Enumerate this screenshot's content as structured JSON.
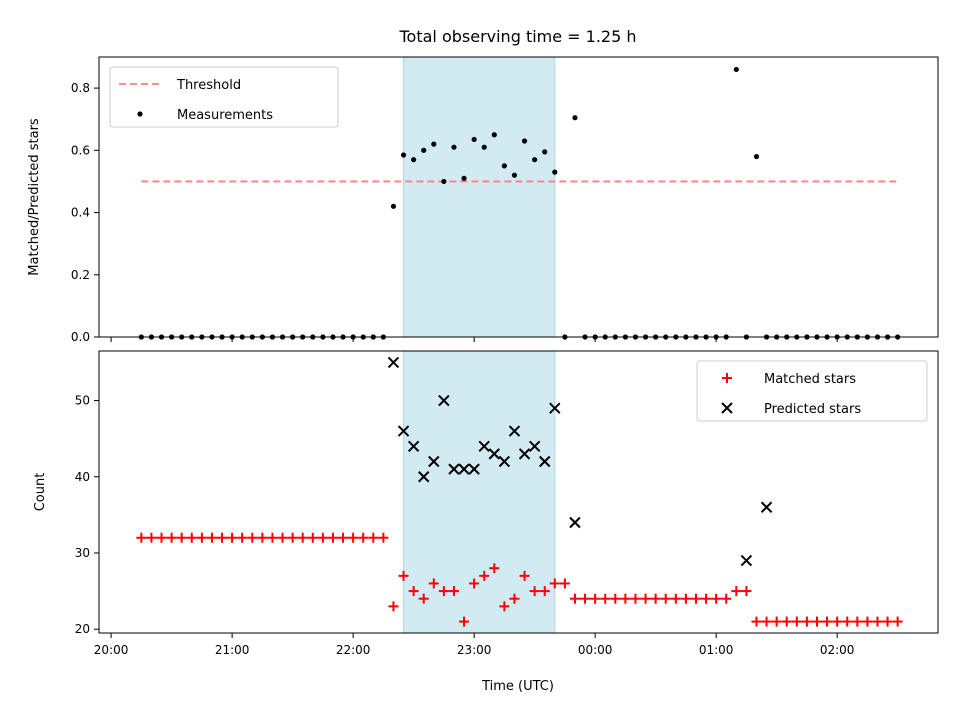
{
  "figure": {
    "title": "Total observing time = 1.25 h",
    "xlabel": "Time (UTC)",
    "xticks": [
      "20:00",
      "21:00",
      "22:00",
      "23:00",
      "00:00",
      "01:00",
      "02:00"
    ],
    "shade_color": "#add8e6",
    "xlim": [
      "19:54",
      "02:50"
    ],
    "shaded_interval": [
      "22:25",
      "23:40"
    ]
  },
  "chart_data": [
    {
      "type": "scatter",
      "ylabel": "Matched/Predicted stars",
      "ylim": [
        0,
        0.9
      ],
      "yticks": [
        0.0,
        0.2,
        0.4,
        0.6,
        0.8
      ],
      "legend_position": "top-left",
      "series": [
        {
          "name": "Threshold",
          "kind": "dashed-line",
          "color": "#ff7f7f",
          "x": [
            "20:15",
            "02:30"
          ],
          "y": [
            0.5,
            0.5
          ]
        },
        {
          "name": "Measurements",
          "kind": "points",
          "color": "#000000",
          "x": [
            "20:15",
            "20:20",
            "20:25",
            "20:30",
            "20:35",
            "20:40",
            "20:45",
            "20:50",
            "20:55",
            "21:00",
            "21:05",
            "21:10",
            "21:15",
            "21:20",
            "21:25",
            "21:30",
            "21:35",
            "21:40",
            "21:45",
            "21:50",
            "21:55",
            "22:00",
            "22:05",
            "22:10",
            "22:15",
            "22:20",
            "22:25",
            "22:30",
            "22:35",
            "22:40",
            "22:45",
            "22:50",
            "22:55",
            "23:00",
            "23:05",
            "23:10",
            "23:15",
            "23:20",
            "23:25",
            "23:30",
            "23:35",
            "23:40",
            "23:45",
            "23:50",
            "23:55",
            "00:00",
            "00:05",
            "00:10",
            "00:15",
            "00:20",
            "00:25",
            "00:30",
            "00:35",
            "00:40",
            "00:45",
            "00:50",
            "00:55",
            "01:00",
            "01:05",
            "01:10",
            "01:15",
            "01:20",
            "01:25",
            "01:30",
            "01:35",
            "01:40",
            "01:45",
            "01:50",
            "01:55",
            "02:00",
            "02:05",
            "02:10",
            "02:15",
            "02:20",
            "02:25",
            "02:30"
          ],
          "y": [
            0,
            0,
            0,
            0,
            0,
            0,
            0,
            0,
            0,
            0,
            0,
            0,
            0,
            0,
            0,
            0,
            0,
            0,
            0,
            0,
            0,
            0,
            0,
            0,
            0,
            0.42,
            0.585,
            0.57,
            0.6,
            0.62,
            0.5,
            0.61,
            0.51,
            0.635,
            0.61,
            0.65,
            0.55,
            0.52,
            0.63,
            0.57,
            0.595,
            0.53,
            0,
            0.705,
            0,
            0,
            0,
            0,
            0,
            0,
            0,
            0,
            0,
            0,
            0,
            0,
            0,
            0,
            0,
            0.86,
            0,
            0.58,
            0,
            0,
            0,
            0,
            0,
            0,
            0,
            0,
            0,
            0,
            0,
            0,
            0,
            0
          ]
        }
      ]
    },
    {
      "type": "scatter",
      "ylabel": "Count",
      "ylim": [
        19.5,
        56.5
      ],
      "yticks": [
        20,
        30,
        40,
        50
      ],
      "legend_position": "top-right",
      "series": [
        {
          "name": "Matched stars",
          "marker": "+",
          "color": "#ff0000",
          "x": [
            "20:15",
            "20:20",
            "20:25",
            "20:30",
            "20:35",
            "20:40",
            "20:45",
            "20:50",
            "20:55",
            "21:00",
            "21:05",
            "21:10",
            "21:15",
            "21:20",
            "21:25",
            "21:30",
            "21:35",
            "21:40",
            "21:45",
            "21:50",
            "21:55",
            "22:00",
            "22:05",
            "22:10",
            "22:15",
            "22:20",
            "22:25",
            "22:30",
            "22:35",
            "22:40",
            "22:45",
            "22:50",
            "22:55",
            "23:00",
            "23:05",
            "23:10",
            "23:15",
            "23:20",
            "23:25",
            "23:30",
            "23:35",
            "23:40",
            "23:45",
            "23:50",
            "23:55",
            "00:00",
            "00:05",
            "00:10",
            "00:15",
            "00:20",
            "00:25",
            "00:30",
            "00:35",
            "00:40",
            "00:45",
            "00:50",
            "00:55",
            "01:00",
            "01:05",
            "01:10",
            "01:15",
            "01:20",
            "01:25",
            "01:30",
            "01:35",
            "01:40",
            "01:45",
            "01:50",
            "01:55",
            "02:00",
            "02:05",
            "02:10",
            "02:15",
            "02:20",
            "02:25",
            "02:30"
          ],
          "y": [
            32,
            32,
            32,
            32,
            32,
            32,
            32,
            32,
            32,
            32,
            32,
            32,
            32,
            32,
            32,
            32,
            32,
            32,
            32,
            32,
            32,
            32,
            32,
            32,
            32,
            23,
            27,
            25,
            24,
            26,
            25,
            25,
            21,
            26,
            27,
            28,
            23,
            24,
            27,
            25,
            25,
            26,
            26,
            24,
            24,
            24,
            24,
            24,
            24,
            24,
            24,
            24,
            24,
            24,
            24,
            24,
            24,
            24,
            24,
            25,
            25,
            21,
            21,
            21,
            21,
            21,
            21,
            21,
            21,
            21,
            21,
            21,
            21,
            21,
            21,
            21
          ]
        },
        {
          "name": "Predicted stars",
          "marker": "x",
          "color": "#000000",
          "x": [
            "22:20",
            "22:25",
            "22:30",
            "22:35",
            "22:40",
            "22:45",
            "22:50",
            "22:55",
            "23:00",
            "23:05",
            "23:10",
            "23:15",
            "23:20",
            "23:25",
            "23:30",
            "23:35",
            "23:40",
            "23:50",
            "01:15",
            "01:25"
          ],
          "y": [
            55,
            46,
            44,
            40,
            42,
            50,
            41,
            41,
            41,
            44,
            43,
            42,
            46,
            43,
            44,
            42,
            49,
            34,
            29,
            36
          ]
        }
      ]
    }
  ]
}
